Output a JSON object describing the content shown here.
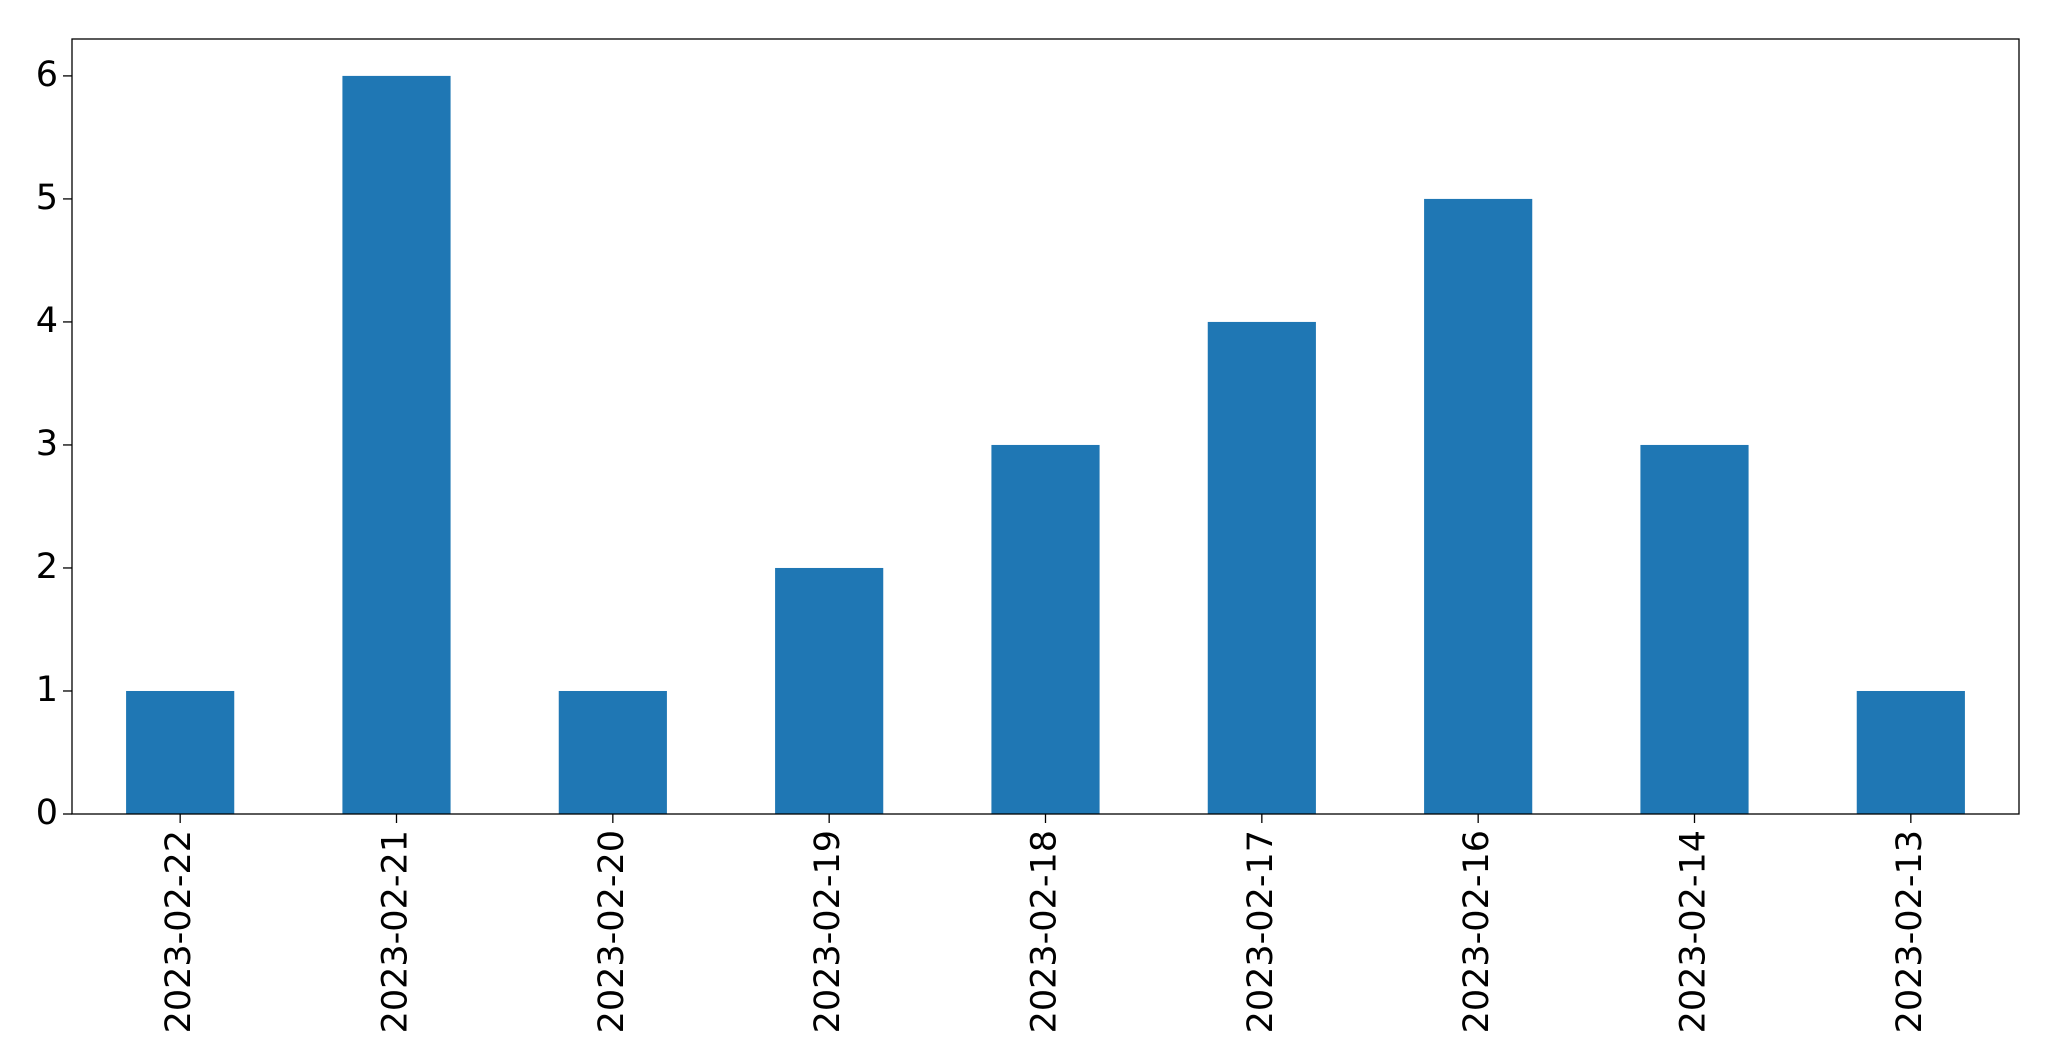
{
  "chart_data": {
    "type": "bar",
    "categories": [
      "2023-02-22",
      "2023-02-21",
      "2023-02-20",
      "2023-02-19",
      "2023-02-18",
      "2023-02-17",
      "2023-02-16",
      "2023-02-14",
      "2023-02-13"
    ],
    "values": [
      1,
      6,
      1,
      2,
      3,
      4,
      5,
      3,
      1
    ],
    "color": "#1f77b4",
    "ylim": [
      0,
      6.3
    ],
    "yticks": [
      0,
      1,
      2,
      3,
      4,
      5,
      6
    ],
    "grid": false
  }
}
